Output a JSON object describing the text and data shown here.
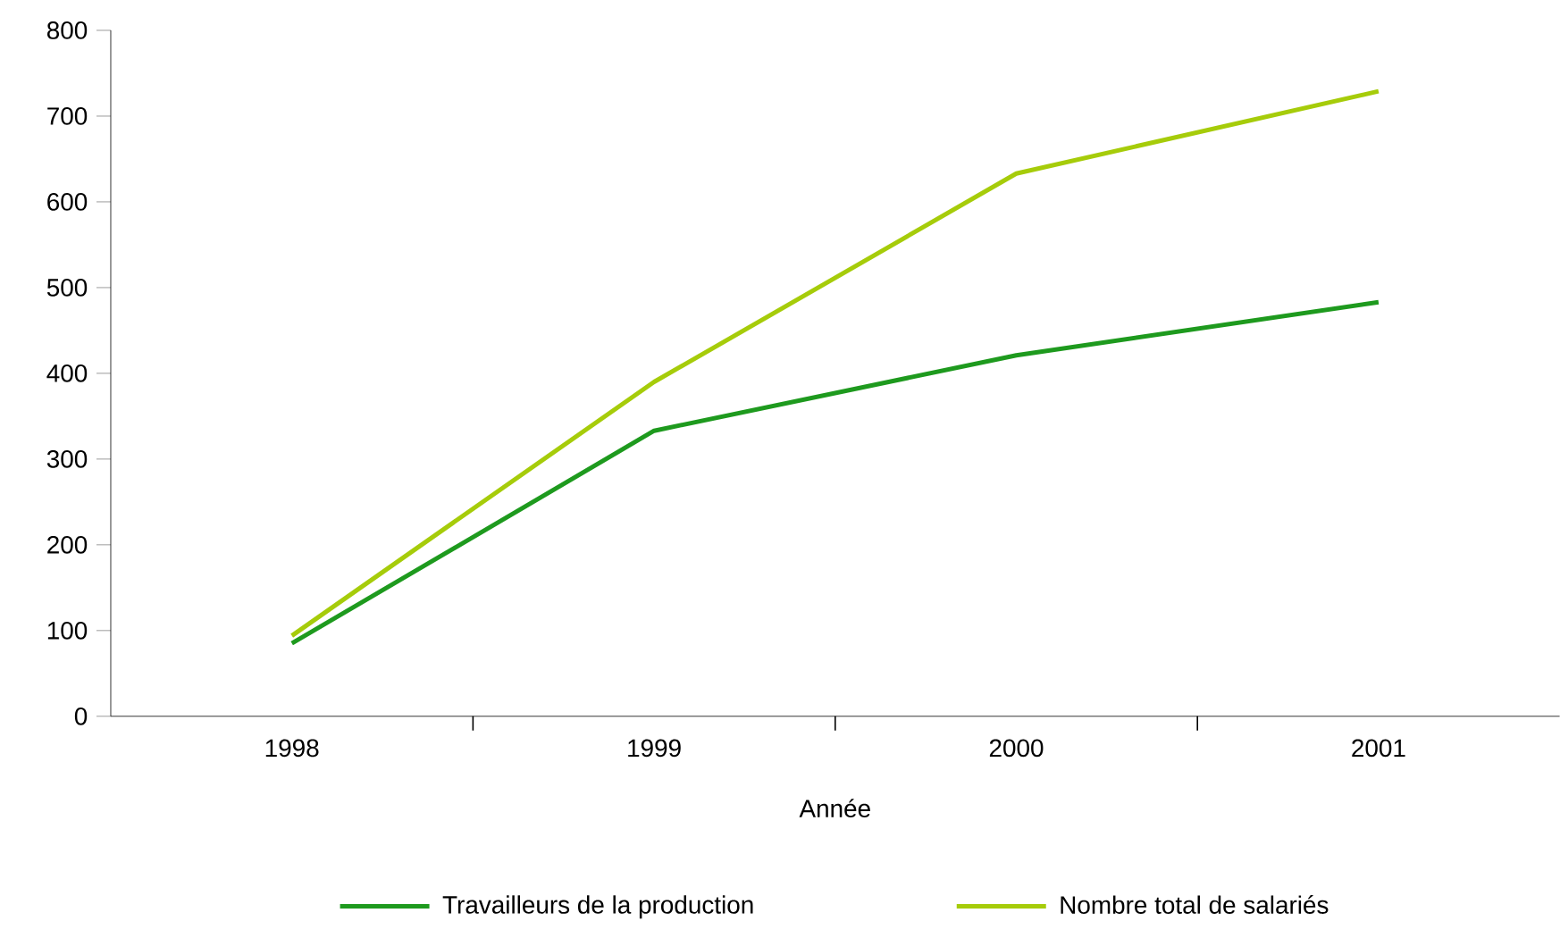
{
  "chart_data": {
    "type": "line",
    "xlabel": "Année",
    "categories": [
      "1998",
      "1999",
      "2000",
      "2001"
    ],
    "series": [
      {
        "name": "Travailleurs de la production",
        "color": "#1e9a1e",
        "values": [
          85,
          333,
          421,
          483
        ]
      },
      {
        "name": "Nombre total de salariés",
        "color": "#a6cc0a",
        "values": [
          94,
          390,
          633,
          729
        ]
      }
    ],
    "ylim": [
      0,
      800
    ],
    "yticks": [
      0,
      100,
      200,
      300,
      400,
      500,
      600,
      700,
      800
    ],
    "grid": false,
    "legend": "bottom",
    "marker": "none",
    "line_style": "solid"
  }
}
